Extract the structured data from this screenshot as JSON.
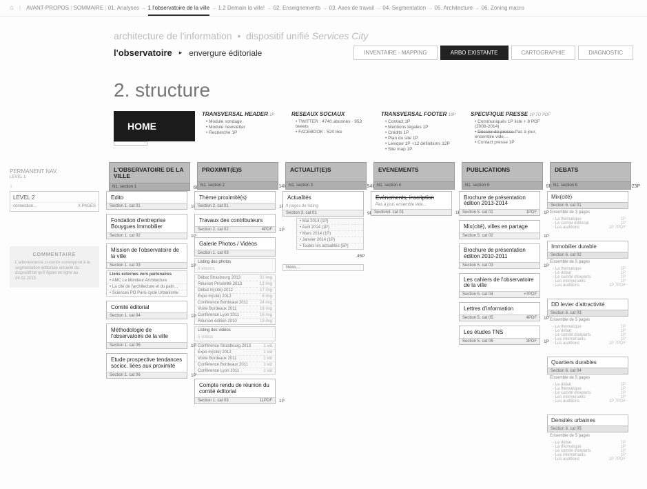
{
  "topbar": {
    "items": [
      {
        "label": "AVANT-PROPOS"
      },
      {
        "label": "SOMMAIRE"
      },
      {
        "label": "01. Analyses"
      },
      {
        "label": "1 l'observatoire de la ville",
        "active": true
      },
      {
        "label": "1.2 Demain la ville!"
      },
      {
        "label": "02. Enseignements"
      },
      {
        "label": "03. Axes de travail"
      },
      {
        "label": "04. Segmentation"
      },
      {
        "label": "05. Architecture"
      },
      {
        "label": "06. Zoning macro"
      }
    ]
  },
  "header": {
    "tagline_a": "architecture de l'information",
    "tagline_b": "dispositif unifié",
    "tagline_c": "Services City",
    "title": "l'observatoire",
    "sub": "envergure éditoriale",
    "tabs": [
      {
        "label": "INVENTAIRE - MAPPING"
      },
      {
        "label": "ARBO EXISTANTE",
        "active": true
      },
      {
        "label": "CARTOGRAPHIE"
      },
      {
        "label": "DIAGNOSTIC"
      }
    ],
    "big": "2. structure"
  },
  "home": {
    "label": "HOME",
    "groups": [
      {
        "title": "TRANSVERSAL HEADER",
        "suffix": "1P",
        "items": [
          "Module sondage",
          "Module newsletter",
          "Recherche 1P"
        ]
      },
      {
        "title": "RESEAUX SOCIAUX",
        "suffix": "",
        "items": [
          "TWITTER : 4740 abonnés · 953 tweets",
          "FACEBOOK : 520 like"
        ]
      },
      {
        "title": "TRANSVERSAL FOOTER",
        "suffix": "18P",
        "items": [
          "Contact 1P",
          "Mentions légales 1P",
          "Crédits 1P",
          "Plan du site 1P",
          "Lexique 1P +12 définitions 12P",
          "Site map 1P"
        ]
      },
      {
        "title": "SPECIFIQUE PRESSE",
        "suffix": "1P TO PDF",
        "items": [
          "Communiqués 1P liste + 8 PDF (2008-2014)",
          "Dossier de presse (strike)  Pas à jour, ensemble vide…",
          "Contact presse 1P"
        ]
      }
    ]
  },
  "left": {
    "permanent": "PERMANENT NAV.",
    "permanent_sub": "LEVEL 1",
    "level2_hdr": "LEVEL 2",
    "level2_row_l": "connection…",
    "level2_row_r": "X PAGES",
    "commentaire_h": "COMMENTAIRE",
    "commentaire": "L'arborescence ci-contre correspond à la segmentation éditoriale actuelle du dispositif tel qu'il figure en ligne au 04.02.2015"
  },
  "level1": [
    {
      "t": "L'OBSERVATOIRE DE LA VILLE",
      "foot": "N1. section 1",
      "p": "6P"
    },
    {
      "t": "PROXIMIT(E)S",
      "foot": "N1. section 2",
      "p": "14P"
    },
    {
      "t": "ACTUALIT(E)S",
      "foot": "N1. section 3",
      "p": "54P"
    },
    {
      "t": "EVENEMENTS",
      "foot": "N1. section 4",
      "p": ""
    },
    {
      "t": "PUBLICATIONS",
      "foot": "N1. section 5",
      "p": "6P"
    },
    {
      "t": "DEBATS",
      "foot": "N1. section 6",
      "p": "23P"
    }
  ],
  "col1": [
    {
      "t": "Edito",
      "foot": "Section 1. cat 01",
      "p": "1P"
    },
    {
      "t": "Fondation d'entreprise Bouygues Immobilier",
      "foot": "Section 1. cat 02",
      "p": "1P"
    },
    {
      "t": "Mission de l'observatoire de la ville",
      "foot": "Section 1. cat 03",
      "p": "1P",
      "extra": {
        "hdr": "Liens externes vers partenaires",
        "items": [
          "AMC Le Moniteur Architecture",
          "La cité de l'architecture et du patri…",
          "Sciences PO Paris cycle Urbanisme"
        ]
      }
    },
    {
      "t": "Comité éditorial",
      "foot": "Section 1. cat 04",
      "p": "1P"
    },
    {
      "t": "Méthodologie de l'observatoire de la ville",
      "foot": "Section 1. cat 05",
      "p": "1P"
    },
    {
      "t": "Etude prospective tendances socioc. liées aux proximité",
      "foot": "Section 1. cat 06",
      "p": "1P"
    }
  ],
  "col2": [
    {
      "t": "Thème proximité(s)",
      "foot": "Section 2. cat 01",
      "p": "1P"
    },
    {
      "t": "Travaux des contributeurs",
      "foot": "Section 2. cat 02",
      "r": "4PDF",
      "p": "1P"
    },
    {
      "t": "Galerie Photos / Vidéos",
      "foot": "Section 1. cat 03",
      "p": ""
    },
    {
      "sub_hdr": "Listing des photos",
      "sub_note": "8 albums",
      "p": "1P",
      "rows": [
        {
          "l": "Débat Strasbourg 2013",
          "r": "31 img",
          "p": "1P"
        },
        {
          "l": "Réunion Proximité 2013",
          "r": "12 img",
          "p": "1P"
        },
        {
          "l": "Débat m(cité) 2012",
          "r": "17 img",
          "p": "1P"
        },
        {
          "l": "Expo m(cité) 2012",
          "r": "6 img",
          "p": "1P"
        },
        {
          "l": "Conférence Bordeaux 2011",
          "r": "24 img",
          "p": "1P"
        },
        {
          "l": "Visite Bordeaux 2011",
          "r": "18 img",
          "p": "1P"
        },
        {
          "l": "Conférence Lyon 2011",
          "r": "16 img",
          "p": "1P"
        },
        {
          "l": "Réunion édition 2010",
          "r": "19 img",
          "p": "1P"
        }
      ]
    },
    {
      "sub_hdr": "Listing des vidéos",
      "sub_note": "5 vidéos",
      "p": "1P",
      "rows": [
        {
          "l": "Conférence Strasbourg 2013",
          "r": "1 vid",
          "p": "1P"
        },
        {
          "l": "Expo m(cité) 2012",
          "r": "1 vid",
          "p": ""
        },
        {
          "l": "Visite Bordeaux 2011",
          "r": "1 vid",
          "p": ""
        },
        {
          "l": "Conférence Bordeaux 2011",
          "r": "1 vid",
          "p": ""
        },
        {
          "l": "Conférence Lyon 2011",
          "r": "1 vid",
          "p": ""
        }
      ]
    },
    {
      "t": "Compte rendu de réunion du comité éditorial",
      "foot": "Section 1. cat 03",
      "r": "11PDF",
      "p": "1P"
    }
  ],
  "col3": [
    {
      "t": "Actualités",
      "foot": "Section 3. cat 01",
      "note": "9 pages de listing",
      "p": "9P",
      "rows": [
        {
          "l": "Mai 2014 (1P)"
        },
        {
          "l": "Avril 2014 (1P)"
        },
        {
          "l": "Mars 2014 (1P)"
        },
        {
          "l": "Janvier 2014 (1P)"
        },
        {
          "l": "Toutes les actualités (5P)"
        }
      ],
      "p2": "45P",
      "news": "News…"
    }
  ],
  "col4": [
    {
      "t": "Evènements, inscription",
      "sub": "Pas à jour, ensemble vide…",
      "foot": "Section4. cat 01",
      "p": "1P",
      "strike": true
    }
  ],
  "col5": [
    {
      "t": "Brochure de présentation édition 2013-2014",
      "foot": "Section 5. cat 01",
      "r": "1PDF",
      "p": "1P"
    },
    {
      "t": "Mix(cité), villes en partage",
      "foot": "Section 5. cat 02",
      "p": "1P"
    },
    {
      "t": "Brochure de présentation édition 2010-2011",
      "foot": "Section 5. cat 03",
      "p": "1P"
    },
    {
      "t": "Les cahiers de l'observatoire de la ville",
      "foot": "Section 5. cat 04",
      "r": "+7PDF",
      "p": ""
    },
    {
      "t": "Lettres d'information",
      "foot": "Section 5. cat 05",
      "r": "4PDF",
      "p": "1P"
    },
    {
      "t": "Les études TNS",
      "foot": "Section 5. cat 06",
      "r": "3PDF",
      "p": "1P"
    }
  ],
  "col6": [
    {
      "t": "Mix(cité)",
      "foot": "Section 6. cat 01",
      "note": "Ensemble de 3 pages",
      "items": [
        {
          "l": "La thématique",
          "r": "1P"
        },
        {
          "l": "Le comité éditorial",
          "r": "1P"
        },
        {
          "l": "Les auditions",
          "r": "1P 7PDF"
        }
      ]
    },
    {
      "t": "Immobilier durable",
      "foot": "Section 6. cat 02",
      "note": "Ensemble de 5 pages",
      "items": [
        {
          "l": "La thématique",
          "r": "1P"
        },
        {
          "l": "Le débat",
          "r": "1P"
        },
        {
          "l": "Le comité d'experts",
          "r": "1P"
        },
        {
          "l": "Les intervenants",
          "r": "1P"
        },
        {
          "l": "Les auditions",
          "r": "1P 7PDF"
        }
      ]
    },
    {
      "t": "DD levier d'attractivité",
      "foot": "Section 6. cat 03",
      "note": "Ensemble de 5 pages",
      "items": [
        {
          "l": "La thématique",
          "r": "1P"
        },
        {
          "l": "Le débat",
          "r": "1P"
        },
        {
          "l": "Le comité d'experts",
          "r": "1P"
        },
        {
          "l": "Les intervenants",
          "r": "1P"
        },
        {
          "l": "Les auditions",
          "r": "1P 7PDF"
        }
      ]
    },
    {
      "t": "Quartiers durables",
      "foot": "Section 6. cat 04",
      "note": "Ensemble de 5 pages",
      "items": [
        {
          "l": "Le débat",
          "r": "1P"
        },
        {
          "l": "La thématique",
          "r": "1P"
        },
        {
          "l": "Le comité d'experts",
          "r": "1P"
        },
        {
          "l": "Les intervenants",
          "r": "1P"
        },
        {
          "l": "Les auditions",
          "r": "1P 7PDF"
        }
      ]
    },
    {
      "t": "Densités urbaines",
      "foot": "Section 6. cat 05",
      "note": "Ensemble de 5 pages",
      "items": [
        {
          "l": "Le débat",
          "r": "1P"
        },
        {
          "l": "La thématique",
          "r": "1P"
        },
        {
          "l": "Le comité d'experts",
          "r": "1P"
        },
        {
          "l": "Les intervenants",
          "r": "1P"
        },
        {
          "l": "Les auditions",
          "r": "1P 7PDF"
        }
      ]
    }
  ]
}
